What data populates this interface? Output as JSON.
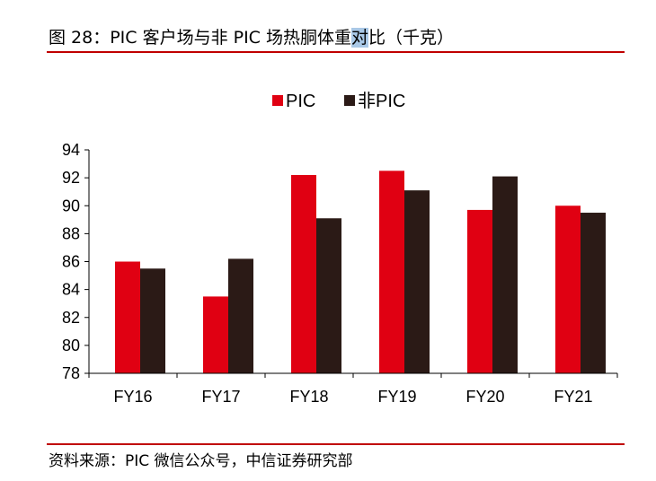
{
  "figure": {
    "title_pre": "图 28：PIC 客户场与非 PIC 场热胴体重",
    "title_highlight": "对",
    "title_post": "比（千克）",
    "source": "资料来源：PIC 微信公众号，中信证券研究部"
  },
  "colors": {
    "PIC": "#e00012",
    "non_PIC": "#2b1a16",
    "rule": "#c00000"
  },
  "chart_data": {
    "type": "bar",
    "title": "",
    "xlabel": "",
    "ylabel": "",
    "categories": [
      "FY16",
      "FY17",
      "FY18",
      "FY19",
      "FY20",
      "FY21"
    ],
    "series": [
      {
        "name": "PIC",
        "values": [
          86.0,
          83.5,
          92.2,
          92.5,
          89.7,
          90.0
        ]
      },
      {
        "name": "非PIC",
        "values": [
          85.5,
          86.2,
          89.1,
          91.1,
          92.1,
          89.5
        ]
      }
    ],
    "ylim": [
      78,
      94
    ],
    "yticks": [
      "78",
      "80",
      "82",
      "84",
      "86",
      "88",
      "90",
      "92",
      "94"
    ],
    "grid": false,
    "legend": "top-center"
  }
}
